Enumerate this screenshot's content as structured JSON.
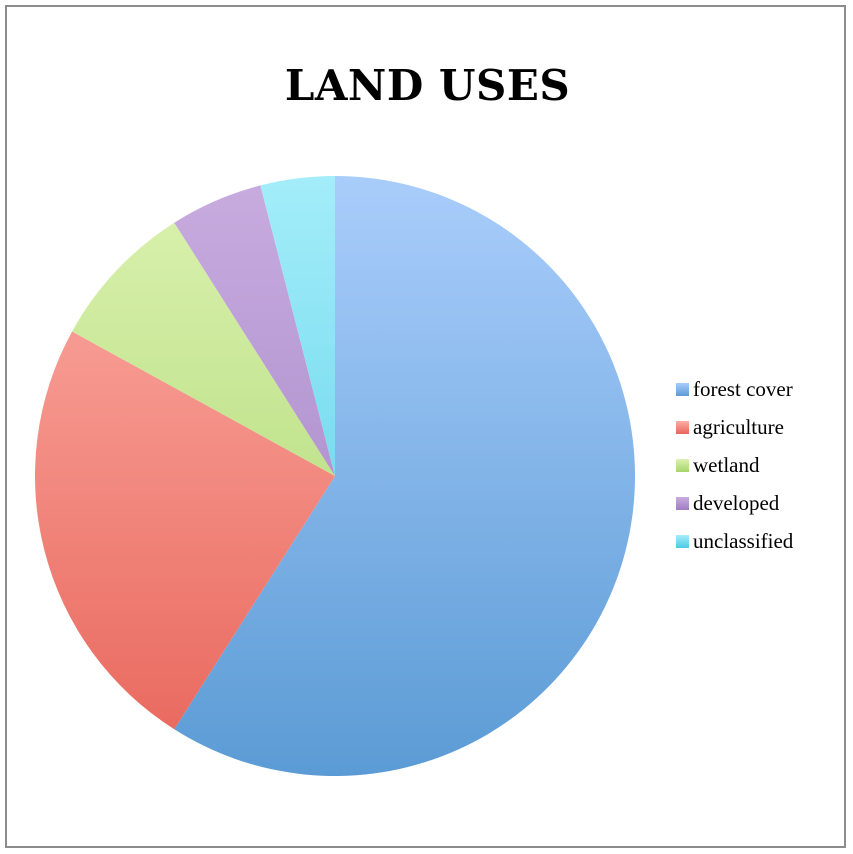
{
  "chart_data": {
    "type": "pie",
    "title": "LAND USES",
    "categories": [
      "forest cover",
      "agriculture",
      "wetland",
      "developed",
      "unclassified"
    ],
    "values": [
      59,
      24,
      8,
      5,
      4
    ],
    "colors": [
      "#5b9bd5",
      "#e8655a",
      "#a7d46b",
      "#9e7dc2",
      "#4ccbe3"
    ],
    "gradient_light": [
      "#a9cdfb",
      "#fcaea6",
      "#dbf2b0",
      "#c8acdf",
      "#a4edfa"
    ],
    "start_angle_deg": 0,
    "direction": "clockwise",
    "legend": {
      "position": "right",
      "entries": [
        "forest cover",
        "agriculture",
        "wetland",
        "developed",
        "unclassified"
      ]
    }
  }
}
